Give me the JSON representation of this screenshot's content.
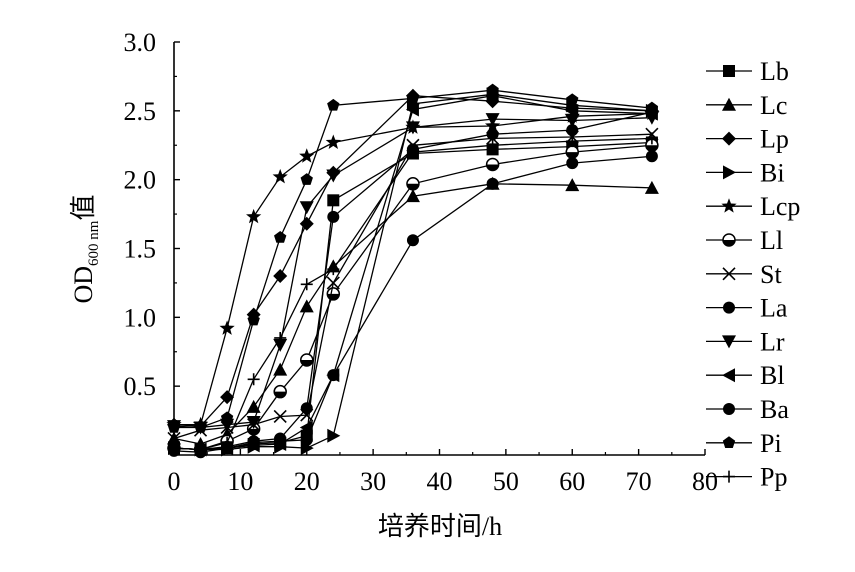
{
  "chart_data": {
    "type": "line",
    "title": "",
    "xlabel": "培养时间/h",
    "ylabel": {
      "main": "OD",
      "subscript": "600 nm",
      "suffix": "值"
    },
    "xlim": [
      0,
      80
    ],
    "ylim": [
      0,
      3.0
    ],
    "x_ticks": [
      "0",
      "10",
      "20",
      "30",
      "40",
      "50",
      "60",
      "70",
      "80"
    ],
    "y_ticks": [
      "0.5",
      "1.0",
      "1.5",
      "2.0",
      "2.5",
      "3.0"
    ],
    "grid": false,
    "legend_position": "right",
    "x": [
      0,
      4,
      8,
      12,
      16,
      20,
      24,
      36,
      48,
      60,
      72
    ],
    "series": [
      {
        "name": "Lb",
        "marker": "square",
        "values": [
          0.05,
          0.04,
          0.05,
          0.08,
          0.09,
          0.14,
          1.85,
          2.19,
          2.22,
          2.24,
          2.27
        ]
      },
      {
        "name": "Lc",
        "marker": "triangle-up",
        "values": [
          0.12,
          0.08,
          0.15,
          0.35,
          0.62,
          1.08,
          1.37,
          1.88,
          1.97,
          1.96,
          1.94
        ]
      },
      {
        "name": "Lp",
        "marker": "diamond",
        "values": [
          0.22,
          0.21,
          0.42,
          1.02,
          1.3,
          1.68,
          2.05,
          2.61,
          2.57,
          2.52,
          2.5
        ]
      },
      {
        "name": "Bi",
        "marker": "triangle-right",
        "values": [
          0.05,
          0.04,
          0.04,
          0.06,
          0.06,
          0.05,
          0.14,
          2.55,
          2.62,
          2.54,
          2.5
        ]
      },
      {
        "name": "Lcp",
        "marker": "star",
        "values": [
          0.22,
          0.22,
          0.92,
          1.73,
          2.02,
          2.17,
          2.27,
          2.38,
          2.39,
          2.46,
          2.48
        ]
      },
      {
        "name": "Ll",
        "marker": "circle-half",
        "values": [
          0.05,
          0.04,
          0.1,
          0.19,
          0.46,
          0.69,
          1.17,
          1.97,
          2.11,
          2.2,
          2.25
        ]
      },
      {
        "name": "St",
        "marker": "x",
        "values": [
          0.12,
          0.18,
          0.2,
          0.22,
          0.28,
          0.29,
          1.25,
          2.25,
          2.3,
          2.31,
          2.33
        ]
      },
      {
        "name": "La",
        "marker": "circle",
        "values": [
          0.03,
          0.02,
          0.05,
          0.09,
          0.1,
          0.11,
          0.58,
          1.56,
          1.97,
          2.12,
          2.17
        ]
      },
      {
        "name": "Lr",
        "marker": "triangle-down",
        "values": [
          0.21,
          0.2,
          0.22,
          0.24,
          0.8,
          1.8,
          2.03,
          2.38,
          2.44,
          2.43,
          2.45
        ]
      },
      {
        "name": "Bl",
        "marker": "triangle-left",
        "values": [
          0.05,
          0.04,
          0.05,
          0.07,
          0.08,
          0.2,
          0.58,
          2.51,
          2.61,
          2.5,
          2.48
        ]
      },
      {
        "name": "Ba",
        "marker": "circle",
        "values": [
          0.05,
          0.04,
          0.06,
          0.1,
          0.12,
          0.34,
          1.73,
          2.22,
          2.33,
          2.36,
          2.49
        ]
      },
      {
        "name": "Pi",
        "marker": "pentagon",
        "values": [
          0.2,
          0.2,
          0.27,
          0.98,
          1.58,
          2.0,
          2.54,
          2.59,
          2.65,
          2.58,
          2.52
        ]
      },
      {
        "name": "Pp",
        "marker": "plus",
        "values": [
          0.05,
          0.04,
          0.09,
          0.55,
          0.85,
          1.24,
          1.35,
          2.2,
          2.25,
          2.28,
          2.3
        ]
      }
    ]
  }
}
